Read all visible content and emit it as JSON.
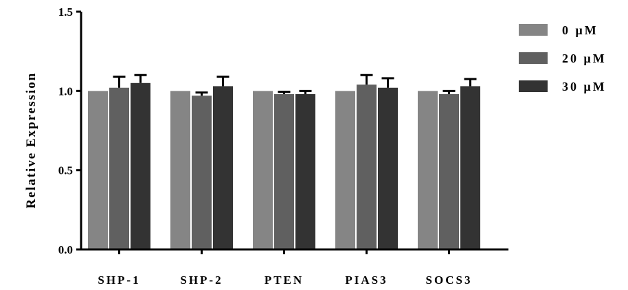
{
  "chart_data": {
    "type": "bar",
    "title": "",
    "xlabel": "",
    "ylabel": "Relative Expression",
    "ylim": [
      0,
      1.5
    ],
    "yticks": [
      "0.0",
      "0.5",
      "1.0",
      "1.5"
    ],
    "categories": [
      "SHP-1",
      "SHP-2",
      "PTEN",
      "PIAS3",
      "SOCS3"
    ],
    "series": [
      {
        "name": "0 μM",
        "color": "#858585",
        "values": [
          1.0,
          1.0,
          1.0,
          1.0,
          1.0
        ],
        "errors": [
          0,
          0,
          0,
          0,
          0
        ]
      },
      {
        "name": "20 μM",
        "color": "#606060",
        "values": [
          1.02,
          0.97,
          0.98,
          1.04,
          0.98
        ],
        "errors": [
          0.07,
          0.02,
          0.015,
          0.06,
          0.02
        ]
      },
      {
        "name": "30 μM",
        "color": "#333333",
        "values": [
          1.05,
          1.03,
          0.98,
          1.02,
          1.03
        ],
        "errors": [
          0.05,
          0.06,
          0.02,
          0.06,
          0.045
        ]
      }
    ],
    "error_bars": "upper",
    "legend_position": "right",
    "grid": false
  }
}
